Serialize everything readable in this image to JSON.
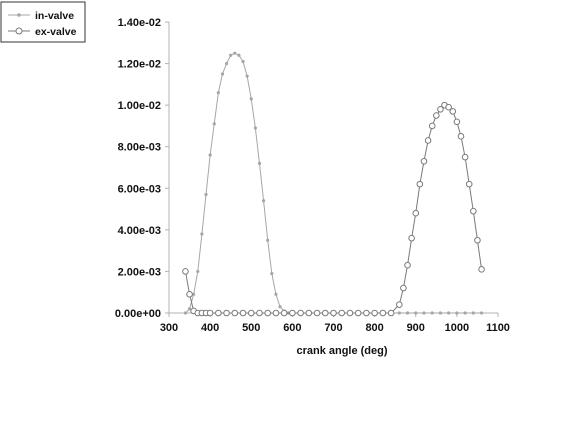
{
  "chart_data": {
    "type": "line",
    "title": "",
    "xlabel": "crank angle (deg)",
    "ylabel": "",
    "xlim": [
      300,
      1100
    ],
    "ylim": [
      0,
      0.014
    ],
    "xticks": [
      300,
      400,
      500,
      600,
      700,
      800,
      900,
      1000,
      1100
    ],
    "xtick_labels": [
      "300",
      "400",
      "500",
      "600",
      "700",
      "800",
      "900",
      "1000",
      "1100"
    ],
    "yticks": [
      0,
      0.002,
      0.004,
      0.006,
      0.008,
      0.01,
      0.012,
      0.014
    ],
    "ytick_labels": [
      "0.00e+00",
      "2.00e-03",
      "4.00e-03",
      "6.00e-03",
      "8.00e-03",
      "1.00e-02",
      "1.20e-02",
      "1.40e-02"
    ],
    "grid": false,
    "legend_position": "top-left",
    "colors": {
      "in_valve": "#a6a6a6",
      "ex_valve": "#7a7a7a",
      "axis": "#b3b3b3"
    },
    "series": [
      {
        "name": "in-valve",
        "marker": "dot",
        "x": [
          340,
          350,
          360,
          370,
          380,
          390,
          400,
          410,
          420,
          430,
          440,
          450,
          460,
          470,
          480,
          490,
          500,
          510,
          520,
          530,
          540,
          550,
          560,
          570,
          580,
          590,
          600,
          620,
          640,
          660,
          680,
          700,
          720,
          740,
          760,
          780,
          800,
          820,
          840,
          860,
          880,
          900,
          920,
          940,
          960,
          980,
          1000,
          1020,
          1040,
          1060
        ],
        "y": [
          0,
          0.0002,
          0.0009,
          0.002,
          0.0038,
          0.0057,
          0.0076,
          0.0091,
          0.0106,
          0.0115,
          0.012,
          0.0124,
          0.0125,
          0.0124,
          0.0121,
          0.0114,
          0.0103,
          0.0089,
          0.0072,
          0.0054,
          0.0035,
          0.0019,
          0.0009,
          0.0003,
          0.0001,
          0,
          0,
          0,
          0,
          0,
          0,
          0,
          0,
          0,
          0,
          0,
          0,
          0,
          0,
          0,
          0,
          0,
          0,
          0,
          0,
          0,
          0,
          0,
          0,
          0
        ]
      },
      {
        "name": "ex-valve",
        "marker": "circle",
        "x": [
          340,
          350,
          360,
          370,
          380,
          390,
          400,
          420,
          440,
          460,
          480,
          500,
          520,
          540,
          560,
          580,
          600,
          620,
          640,
          660,
          680,
          700,
          720,
          740,
          760,
          780,
          800,
          820,
          840,
          860,
          870,
          880,
          890,
          900,
          910,
          920,
          930,
          940,
          950,
          960,
          970,
          980,
          990,
          1000,
          1010,
          1020,
          1030,
          1040,
          1050,
          1060
        ],
        "y": [
          0.002,
          0.0009,
          0.0001,
          0,
          0,
          0,
          0,
          0,
          0,
          0,
          0,
          0,
          0,
          0,
          0,
          0,
          0,
          0,
          0,
          0,
          0,
          0,
          0,
          0,
          0,
          0,
          0,
          0,
          0,
          0.0004,
          0.0012,
          0.0023,
          0.0036,
          0.0048,
          0.0062,
          0.0073,
          0.0083,
          0.009,
          0.0095,
          0.0098,
          0.01,
          0.0099,
          0.0097,
          0.0092,
          0.0085,
          0.0075,
          0.0062,
          0.0049,
          0.0035,
          0.0021
        ]
      }
    ]
  }
}
